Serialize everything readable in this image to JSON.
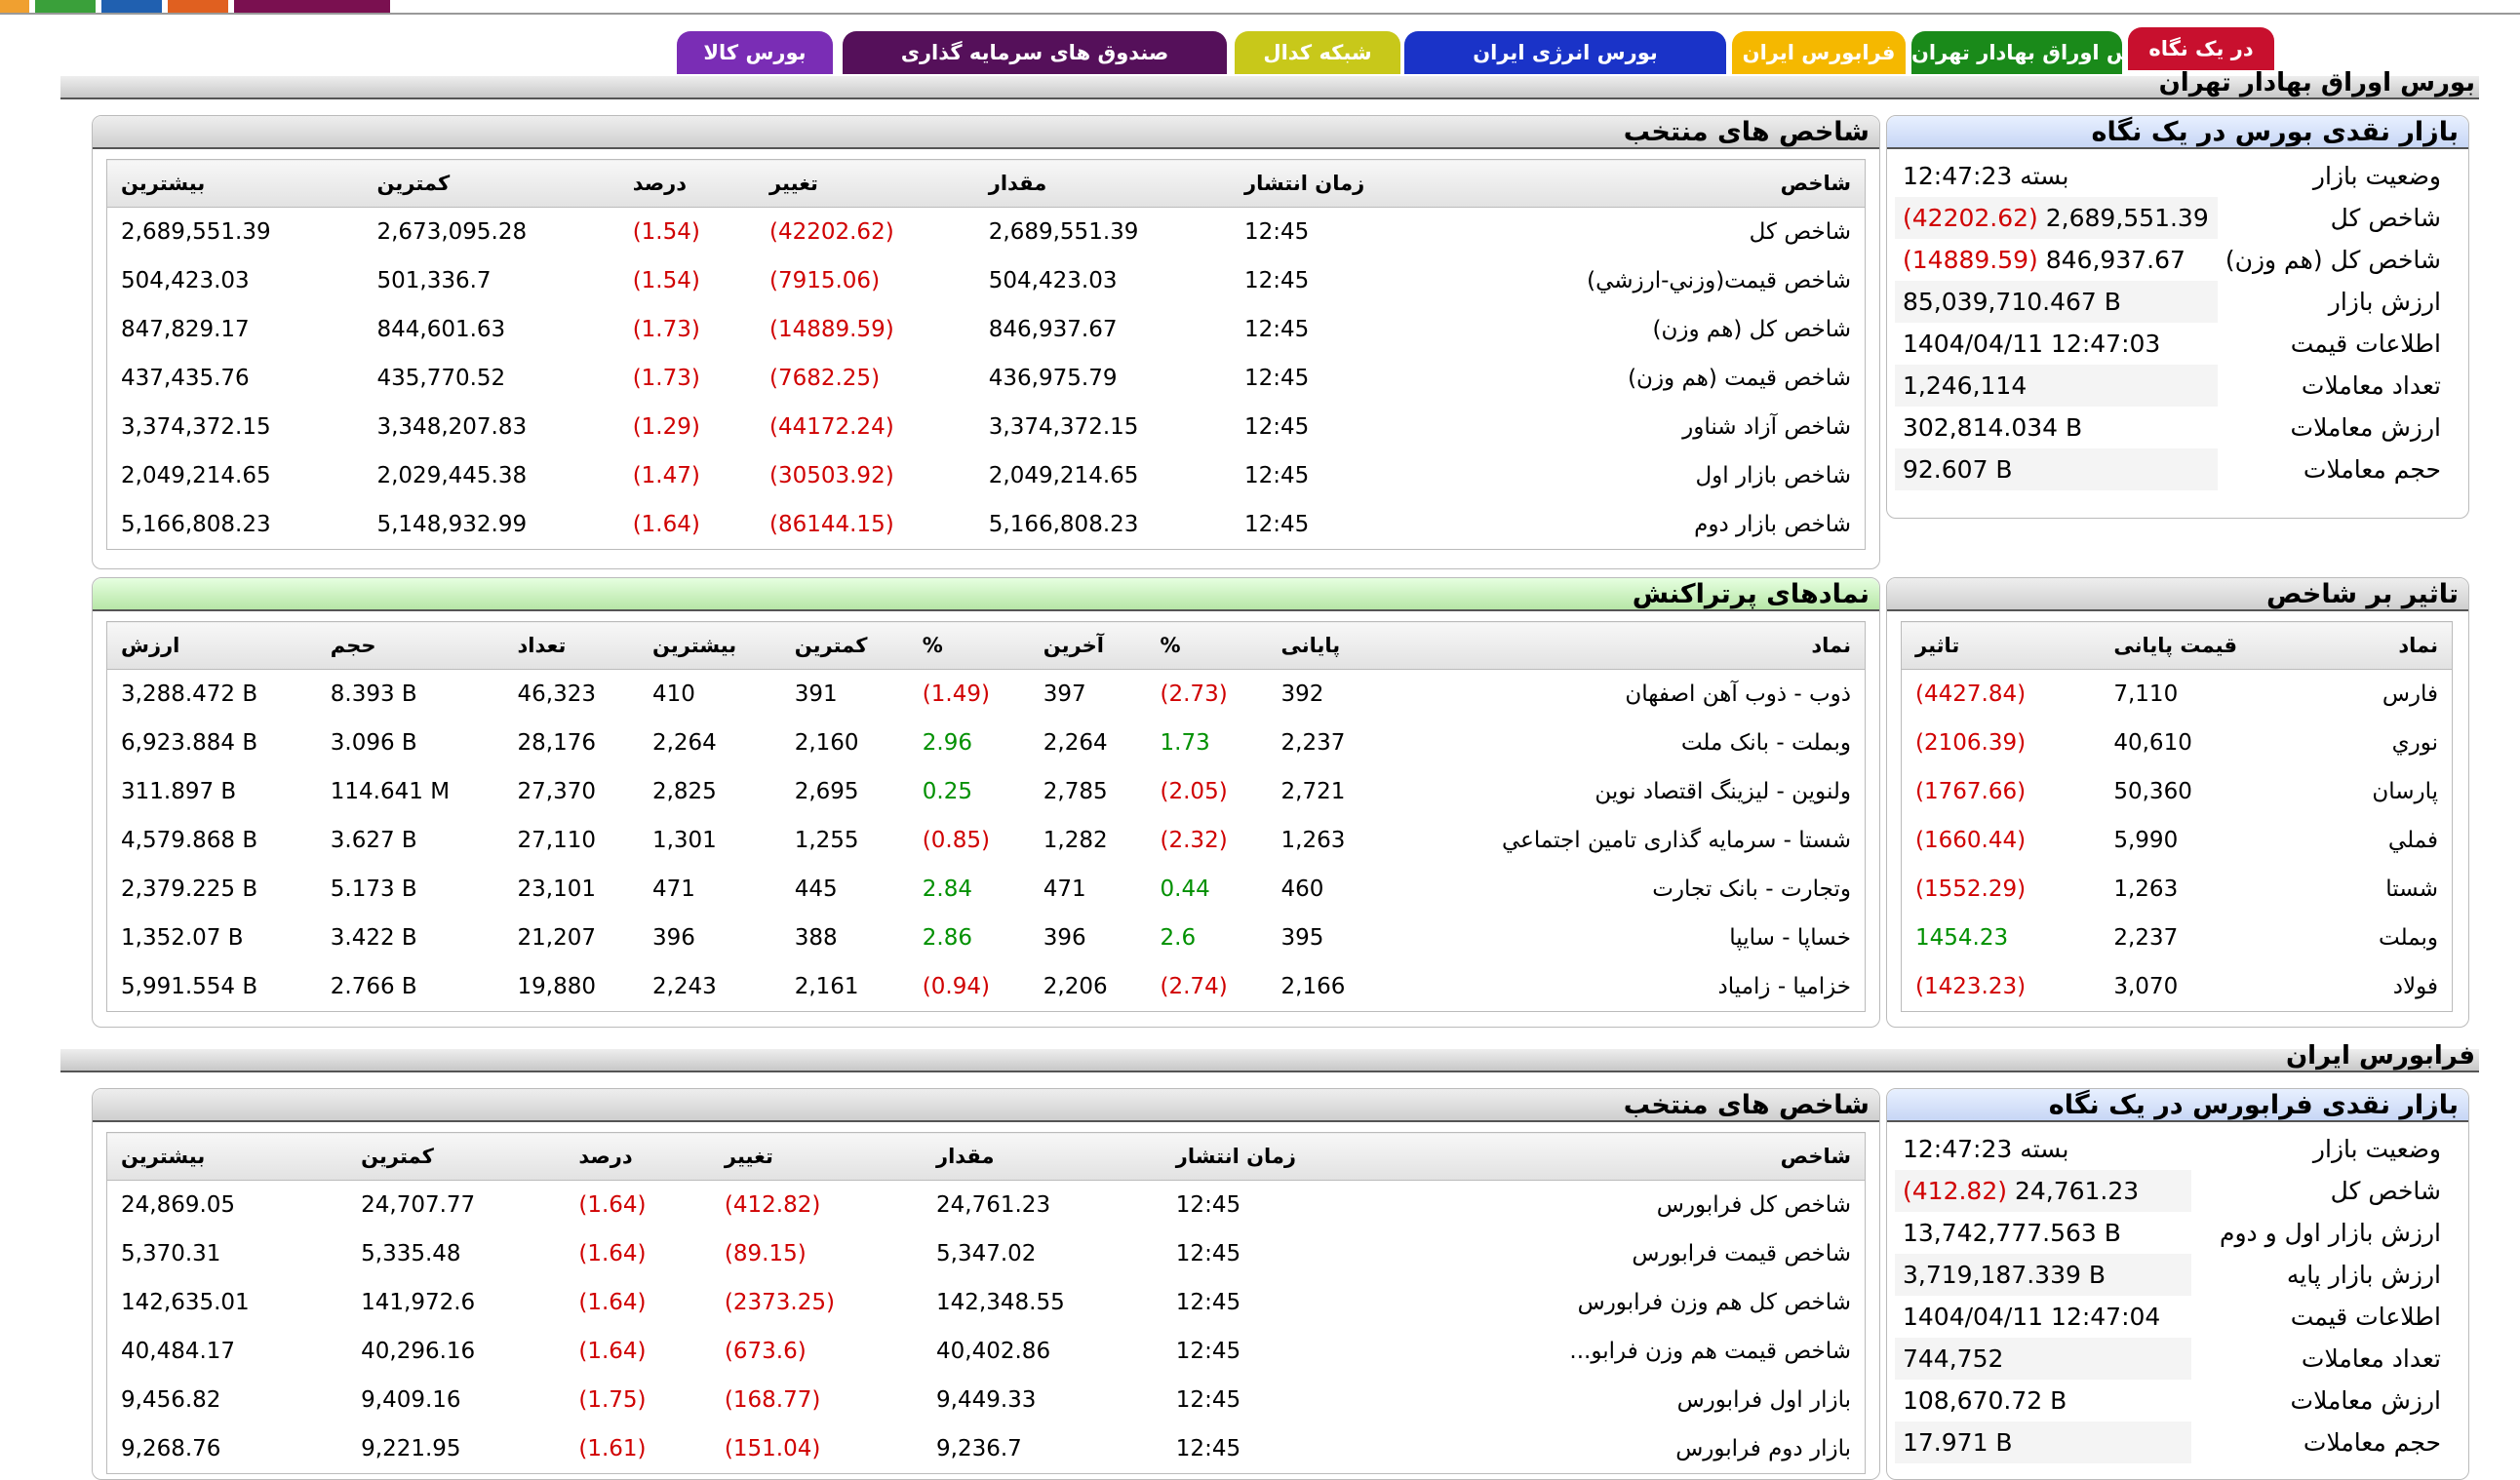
{
  "colors": {
    "red": "#d00000",
    "green": "#009000"
  },
  "tabs": [
    {
      "label": "در یک نگاه",
      "color": "#c8102e"
    },
    {
      "label": "بورس اوراق بهادار تهران",
      "color": "#1a8a1a"
    },
    {
      "label": "فرابورس ایران",
      "color": "#f5b800"
    },
    {
      "label": "بورس انرژی ایران",
      "color": "#1a33c8"
    },
    {
      "label": "شبکه کدال",
      "color": "#c8c81a"
    },
    {
      "label": "صندوق های سرمایه گذاری",
      "color": "#55105a"
    },
    {
      "label": "بورس کالا",
      "color": "#7a2db5"
    }
  ],
  "tse": {
    "section_title": "بورس اوراق بهادار تهران",
    "summary": {
      "title": "بازار نقدی بورس در یک نگاه",
      "rows": [
        {
          "label": "وضعیت بازار",
          "value": "بسته 12:47:23",
          "change": ""
        },
        {
          "label": "شاخص کل",
          "value": "2,689,551.39",
          "change": "(42202.62)"
        },
        {
          "label": "شاخص کل (هم وزن)",
          "value": "846,937.67",
          "change": "(14889.59)"
        },
        {
          "label": "ارزش بازار",
          "value": "85,039,710.467 B",
          "change": ""
        },
        {
          "label": "اطلاعات قیمت",
          "value": "1404/04/11 12:47:03",
          "change": ""
        },
        {
          "label": "تعداد معاملات",
          "value": "1,246,114",
          "change": ""
        },
        {
          "label": "ارزش معاملات",
          "value": "302,814.034 B",
          "change": ""
        },
        {
          "label": "حجم معاملات",
          "value": "92.607 B",
          "change": ""
        }
      ]
    },
    "indices": {
      "title": "شاخص های منتخب",
      "headers": [
        "شاخص",
        "زمان انتشار",
        "مقدار",
        "تغییر",
        "درصد",
        "کمترین",
        "بیشترین"
      ],
      "rows": [
        [
          "شاخص کل",
          "12:45",
          "2,689,551.39",
          "(42202.62)",
          "(1.54)",
          "2,673,095.28",
          "2,689,551.39"
        ],
        [
          "شاخص قیمت(وزني-ارزشي)",
          "12:45",
          "504,423.03",
          "(7915.06)",
          "(1.54)",
          "501,336.7",
          "504,423.03"
        ],
        [
          "شاخص کل (هم وزن)",
          "12:45",
          "846,937.67",
          "(14889.59)",
          "(1.73)",
          "844,601.63",
          "847,829.17"
        ],
        [
          "شاخص قیمت (هم وزن)",
          "12:45",
          "436,975.79",
          "(7682.25)",
          "(1.73)",
          "435,770.52",
          "437,435.76"
        ],
        [
          "شاخص آزاد شناور",
          "12:45",
          "3,374,372.15",
          "(44172.24)",
          "(1.29)",
          "3,348,207.83",
          "3,374,372.15"
        ],
        [
          "شاخص بازار اول",
          "12:45",
          "2,049,214.65",
          "(30503.92)",
          "(1.47)",
          "2,029,445.38",
          "2,049,214.65"
        ],
        [
          "شاخص بازار دوم",
          "12:45",
          "5,166,808.23",
          "(86144.15)",
          "(1.64)",
          "5,148,932.99",
          "5,166,808.23"
        ]
      ]
    },
    "impact": {
      "title": "تاثیر بر شاخص",
      "headers": [
        "نماد",
        "قیمت پایانی",
        "تاثیر"
      ],
      "rows": [
        [
          "فارس",
          "7,110",
          "(4427.84)"
        ],
        [
          "نوري",
          "40,610",
          "(2106.39)"
        ],
        [
          "پارسان",
          "50,360",
          "(1767.66)"
        ],
        [
          "فملي",
          "5,990",
          "(1660.44)"
        ],
        [
          "شستا",
          "1,263",
          "(1552.29)"
        ],
        [
          "وبملت",
          "2,237",
          "1454.23"
        ],
        [
          "فولاد",
          "3,070",
          "(1423.23)"
        ]
      ]
    },
    "active": {
      "title": "نمادهای پرتراکنش",
      "headers": [
        "نماد",
        "پایانی",
        "%",
        "آخرین",
        "%",
        "کمترین",
        "بیشترین",
        "تعداد",
        "حجم",
        "ارزش"
      ],
      "rows": [
        [
          "ذوب - ذوب آهن اصفهان",
          "392",
          "(2.73)",
          "397",
          "(1.49)",
          "391",
          "410",
          "46,323",
          "8.393 B",
          "3,288.472 B"
        ],
        [
          "وبملت - بانک ملت",
          "2,237",
          "1.73",
          "2,264",
          "2.96",
          "2,160",
          "2,264",
          "28,176",
          "3.096 B",
          "6,923.884 B"
        ],
        [
          "ولنوین - لیزینگ اقتصاد نوین",
          "2,721",
          "(2.05)",
          "2,785",
          "0.25",
          "2,695",
          "2,825",
          "27,370",
          "114.641 M",
          "311.897 B"
        ],
        [
          "شستا - سرمایه گذاری تامین اجتماعي",
          "1,263",
          "(2.32)",
          "1,282",
          "(0.85)",
          "1,255",
          "1,301",
          "27,110",
          "3.627 B",
          "4,579.868 B"
        ],
        [
          "وتجارت - بانک تجارت",
          "460",
          "0.44",
          "471",
          "2.84",
          "445",
          "471",
          "23,101",
          "5.173 B",
          "2,379.225 B"
        ],
        [
          "خساپا - سایپا",
          "395",
          "2.6",
          "396",
          "2.86",
          "388",
          "396",
          "21,207",
          "3.422 B",
          "1,352.07 B"
        ],
        [
          "خزامیا - زامیاد",
          "2,166",
          "(2.74)",
          "2,206",
          "(0.94)",
          "2,161",
          "2,243",
          "19,880",
          "2.766 B",
          "5,991.554 B"
        ]
      ]
    }
  },
  "ifb": {
    "section_title": "فرابورس ایران",
    "summary": {
      "title": "بازار نقدی فرابورس در یک نگاه",
      "rows": [
        {
          "label": "وضعیت بازار",
          "value": "بسته 12:47:23",
          "change": ""
        },
        {
          "label": "شاخص کل",
          "value": "24,761.23",
          "change": "(412.82)"
        },
        {
          "label": "ارزش بازار اول و دوم",
          "value": "13,742,777.563 B",
          "change": ""
        },
        {
          "label": "ارزش بازار پایه",
          "value": "3,719,187.339 B",
          "change": ""
        },
        {
          "label": "اطلاعات قیمت",
          "value": "1404/04/11 12:47:04",
          "change": ""
        },
        {
          "label": "تعداد معاملات",
          "value": "744,752",
          "change": ""
        },
        {
          "label": "ارزش معاملات",
          "value": "108,670.72 B",
          "change": ""
        },
        {
          "label": "حجم معاملات",
          "value": "17.971 B",
          "change": ""
        }
      ]
    },
    "indices": {
      "title": "شاخص های منتخب",
      "headers": [
        "شاخص",
        "زمان انتشار",
        "مقدار",
        "تغییر",
        "درصد",
        "کمترین",
        "بیشترین"
      ],
      "rows": [
        [
          "شاخص کل فرابورس",
          "12:45",
          "24,761.23",
          "(412.82)",
          "(1.64)",
          "24,707.77",
          "24,869.05"
        ],
        [
          "شاخص قیمت فرابورس",
          "12:45",
          "5,347.02",
          "(89.15)",
          "(1.64)",
          "5,335.48",
          "5,370.31"
        ],
        [
          "شاخص کل هم وزن فرابورس",
          "12:45",
          "142,348.55",
          "(2373.25)",
          "(1.64)",
          "141,972.6",
          "142,635.01"
        ],
        [
          "شاخص قیمت هم وزن فرابو...",
          "12:45",
          "40,402.86",
          "(673.6)",
          "(1.64)",
          "40,296.16",
          "40,484.17"
        ],
        [
          "بازار اول فرابورس",
          "12:45",
          "9,449.33",
          "(168.77)",
          "(1.75)",
          "9,409.16",
          "9,456.82"
        ],
        [
          "بازار دوم فرابورس",
          "12:45",
          "9,236.7",
          "(151.04)",
          "(1.61)",
          "9,221.95",
          "9,268.76"
        ]
      ]
    }
  }
}
